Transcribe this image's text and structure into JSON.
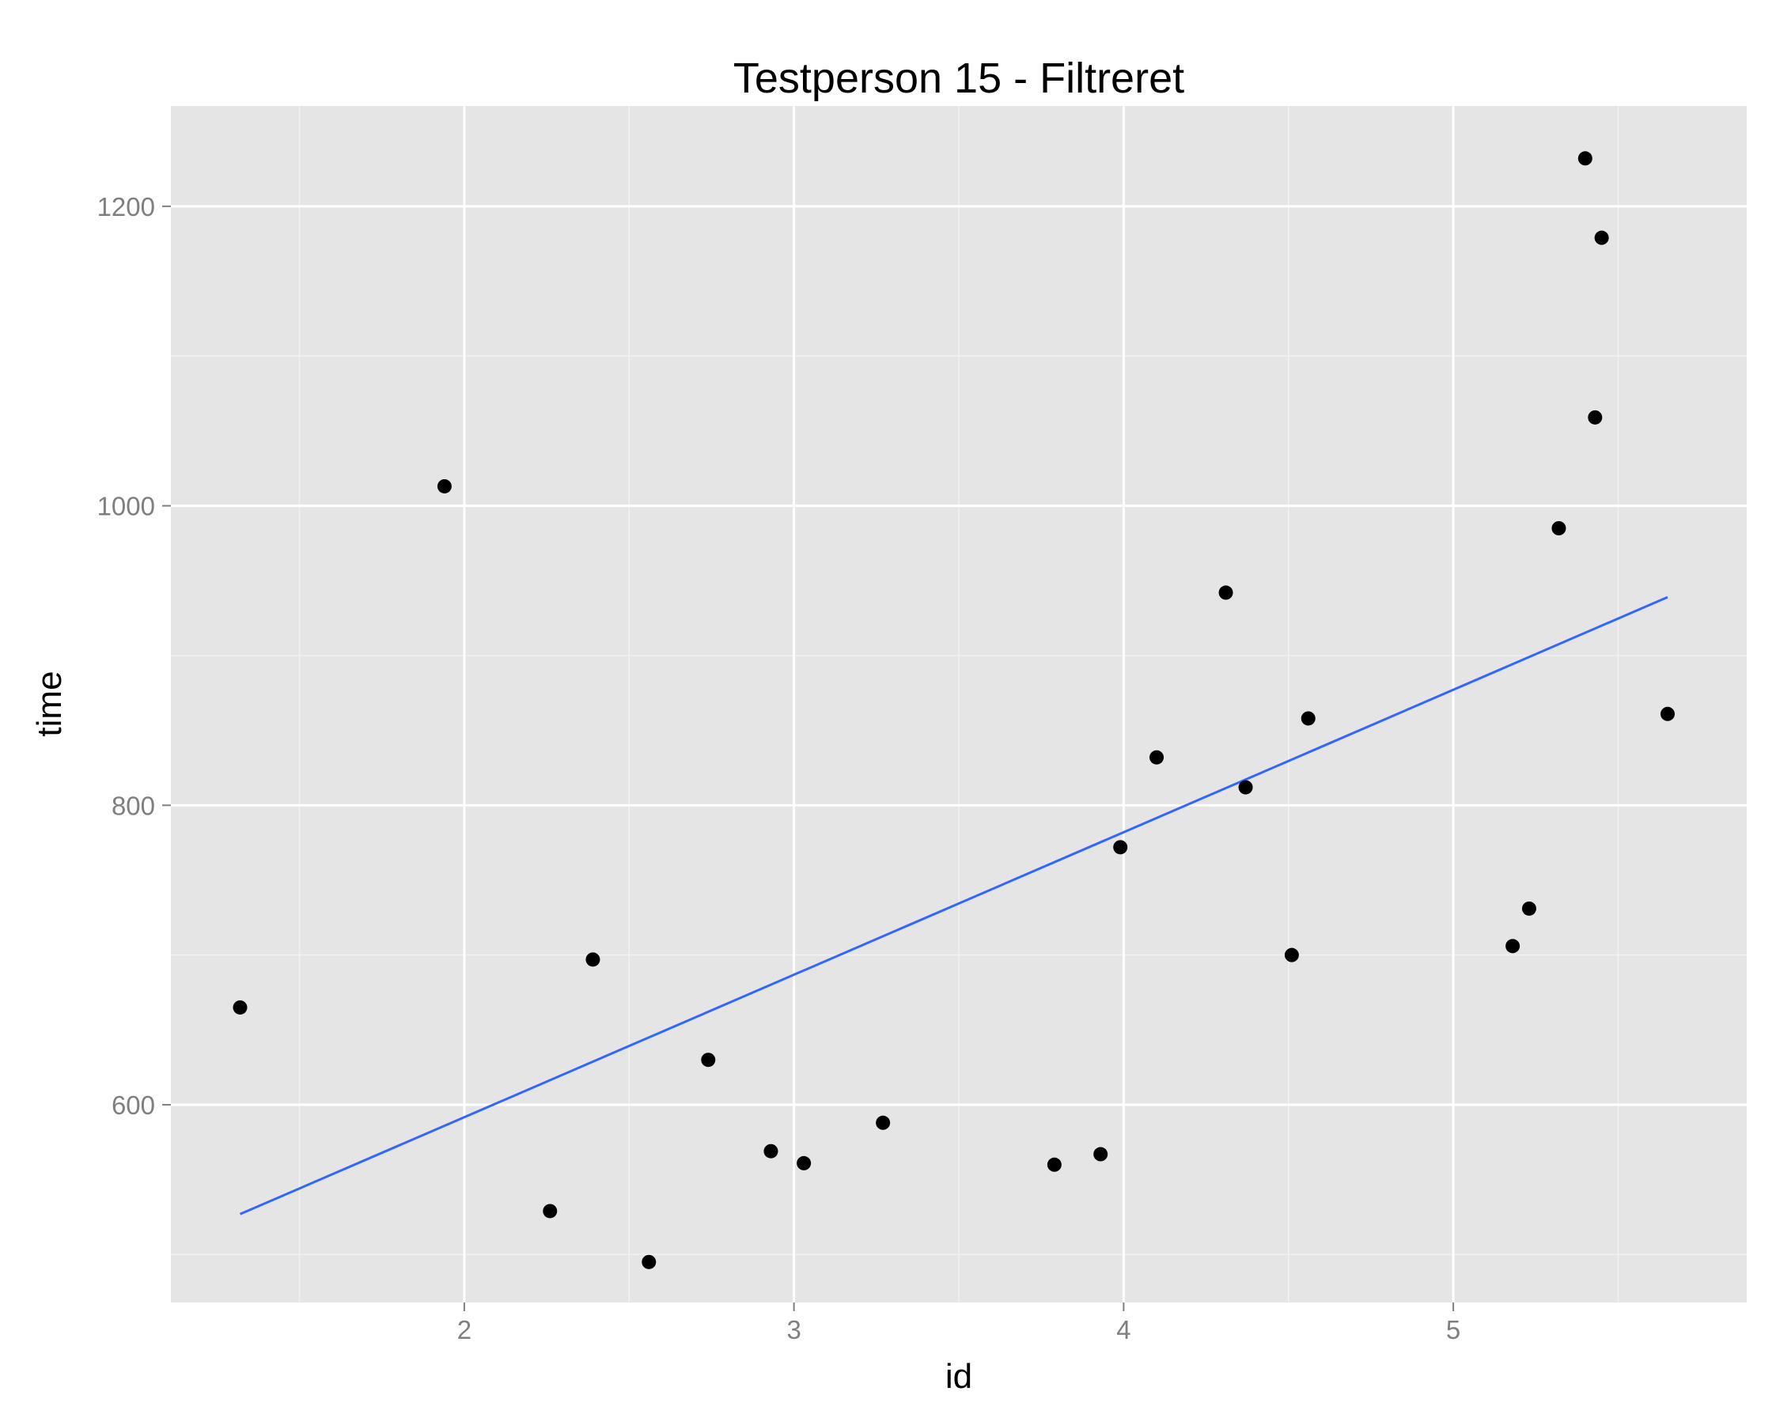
{
  "chart_data": {
    "type": "scatter",
    "title": "Testperson 15 - Filtreret",
    "xlabel": "id",
    "ylabel": "time",
    "xlim": [
      1.11,
      5.89
    ],
    "ylim": [
      468,
      1267
    ],
    "x_ticks": [
      2,
      3,
      4,
      5
    ],
    "y_ticks": [
      600,
      800,
      1000,
      1200
    ],
    "x_tick_labels": [
      "2",
      "3",
      "4",
      "5"
    ],
    "y_tick_labels": [
      "600",
      "800",
      "1000",
      "1200"
    ],
    "grid": true,
    "series": [
      {
        "type": "scatter",
        "points": [
          {
            "x": 1.32,
            "y": 665
          },
          {
            "x": 1.94,
            "y": 1013
          },
          {
            "x": 2.26,
            "y": 529
          },
          {
            "x": 2.39,
            "y": 697
          },
          {
            "x": 2.56,
            "y": 495
          },
          {
            "x": 2.74,
            "y": 630
          },
          {
            "x": 2.93,
            "y": 569
          },
          {
            "x": 3.03,
            "y": 561
          },
          {
            "x": 3.27,
            "y": 588
          },
          {
            "x": 3.79,
            "y": 560
          },
          {
            "x": 3.93,
            "y": 567
          },
          {
            "x": 3.99,
            "y": 772
          },
          {
            "x": 4.1,
            "y": 832
          },
          {
            "x": 4.31,
            "y": 942
          },
          {
            "x": 4.37,
            "y": 812
          },
          {
            "x": 4.51,
            "y": 700
          },
          {
            "x": 4.56,
            "y": 858
          },
          {
            "x": 5.18,
            "y": 706
          },
          {
            "x": 5.23,
            "y": 731
          },
          {
            "x": 5.32,
            "y": 985
          },
          {
            "x": 5.4,
            "y": 1232
          },
          {
            "x": 5.43,
            "y": 1059
          },
          {
            "x": 5.45,
            "y": 1179
          },
          {
            "x": 5.65,
            "y": 861
          }
        ]
      },
      {
        "type": "line",
        "points": [
          {
            "x": 1.32,
            "y": 527
          },
          {
            "x": 5.65,
            "y": 939
          }
        ]
      }
    ],
    "colors": {
      "panel": "#e5e5e5",
      "grid_major": "#ffffff",
      "grid_minor": "#f2f2f2",
      "points": "#000000",
      "fit_line": "#3366ff",
      "tick_text": "#7f7f7f"
    }
  }
}
